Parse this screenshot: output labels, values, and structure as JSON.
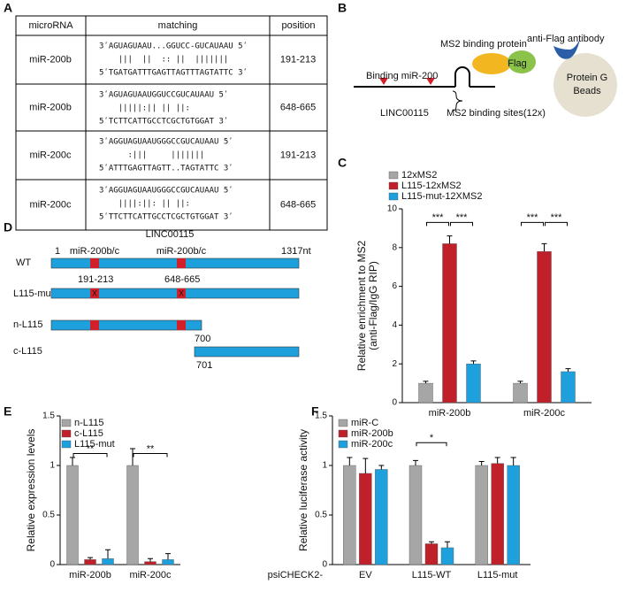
{
  "panel_labels": [
    "A",
    "B",
    "C",
    "D",
    "E",
    "F"
  ],
  "table": {
    "header": [
      "microRNA",
      "matching",
      "position"
    ],
    "rows": [
      [
        "miR-200b",
        [
          "3ʹAGUAGUAAU...GGUCC-GUCAUAAU 5ʹ",
          "    |||  ||  :: ||  |||||||",
          "5ʹTGATGATTTGAGTTAGTTTAGTATTC 3ʹ"
        ],
        "191-213"
      ],
      [
        "miR-200b",
        [
          "3ʹAGUAGUAAUGGUCCGUCAUAAU 5ʹ",
          "    |||||:|| || ||:",
          "5ʹTCTTCATTGCCTCGCTGTGGAT 3ʹ"
        ],
        "648-665"
      ],
      [
        "miR-200c",
        [
          "3ʹAGGUAGUAAUGGGCCGUCAUAAU 5ʹ",
          "      :|||     |||||||",
          "5ʹATTTGAGTTAGTT..TAGTATTC 3ʹ"
        ],
        "191-213"
      ],
      [
        "miR-200c",
        [
          "3ʹAGGUAGUAAUGGGCCGUCAUAAU 5ʹ",
          "    ||||:||: || ||:",
          "5ʹTTCTTCATTGCCTCGCTGTGGAT 3ʹ"
        ],
        "648-665"
      ]
    ]
  },
  "diagram_b": {
    "binding": "Binding miR-200",
    "rna": "LINC00115",
    "ms2_protein": "MS2 binding protein",
    "flag": "Flag",
    "antibody": "anti-Flag antibody",
    "beads": [
      "Protein G",
      "Beads"
    ],
    "sites": "MS2 binding sites(12x)"
  },
  "diagram_d": {
    "title": "LINC00115",
    "start": "1",
    "site1": "miR-200b/c",
    "site2": "miR-200b/c",
    "end": "1317nt",
    "wt": "WT",
    "pos1": "191-213",
    "pos2": "648-665",
    "mut": "L115-mut",
    "x1": "X",
    "x2": "X",
    "n": "n-L115",
    "c": "c-L115",
    "n_end": "700",
    "c_start": "701"
  },
  "chart_data": [
    {
      "type": "bar",
      "ylabel": [
        "Relative enrichment to MS2",
        "(anti-Flag/IgG RIP)"
      ],
      "categories": [
        "miR-200b",
        "miR-200c"
      ],
      "series": [
        {
          "name": "12xMS2",
          "color": "#a6a6a6",
          "values": [
            1,
            1
          ],
          "errors": [
            0.1,
            0.1
          ]
        },
        {
          "name": "L115-12xMS2",
          "color": "#c0202a",
          "values": [
            8.2,
            7.8
          ],
          "errors": [
            0.4,
            0.4
          ]
        },
        {
          "name": "L115-mut-12XMS2",
          "color": "#1ea0dc",
          "values": [
            2,
            1.6
          ],
          "errors": [
            0.15,
            0.15
          ]
        }
      ],
      "ylim": [
        0,
        10
      ],
      "yticks": [
        0,
        2,
        4,
        6,
        8,
        10
      ],
      "annotations": [
        {
          "label": "***",
          "category": 0,
          "series": [
            0,
            1
          ],
          "y": 9.3
        },
        {
          "label": "***",
          "category": 0,
          "series": [
            1,
            2
          ],
          "y": 9.3
        },
        {
          "label": "***",
          "category": 1,
          "series": [
            0,
            1
          ],
          "y": 9.3
        },
        {
          "label": "***",
          "category": 1,
          "series": [
            1,
            2
          ],
          "y": 9.3
        }
      ]
    },
    {
      "type": "bar",
      "ylabel": "Relative expression levels",
      "categories": [
        "miR-200b",
        "miR-200c"
      ],
      "series": [
        {
          "name": "n-L115",
          "color": "#a6a6a6",
          "values": [
            1,
            1
          ],
          "errors": [
            0.08,
            0.17
          ]
        },
        {
          "name": "c-L115",
          "color": "#c0202a",
          "values": [
            0.05,
            0.03
          ],
          "errors": [
            0.02,
            0.03
          ]
        },
        {
          "name": "L115-mut",
          "color": "#1ea0dc",
          "values": [
            0.06,
            0.05
          ],
          "errors": [
            0.09,
            0.06
          ]
        }
      ],
      "ylim": [
        0,
        1.5
      ],
      "yticks": [
        0,
        0.5,
        1,
        1.5
      ],
      "annotations": [
        {
          "label": "**",
          "category": 0,
          "series": [
            0,
            2
          ],
          "y": 1.12
        },
        {
          "label": "**",
          "category": 1,
          "series": [
            0,
            2
          ],
          "y": 1.12
        }
      ]
    },
    {
      "type": "bar",
      "ylabel": "Relative luciferase activity",
      "xprefix": "psiCHECK2-",
      "categories": [
        "EV",
        "L115-WT",
        "L115-mut"
      ],
      "series": [
        {
          "name": "miR-C",
          "color": "#a6a6a6",
          "values": [
            1,
            1,
            1
          ],
          "errors": [
            0.08,
            0.05,
            0.04
          ]
        },
        {
          "name": "miR-200b",
          "color": "#c0202a",
          "values": [
            0.92,
            0.21,
            1.02
          ],
          "errors": [
            0.15,
            0.02,
            0.06
          ]
        },
        {
          "name": "miR-200c",
          "color": "#1ea0dc",
          "values": [
            0.96,
            0.17,
            1.0
          ],
          "errors": [
            0.04,
            0.06,
            0.08
          ]
        }
      ],
      "ylim": [
        0,
        1.5
      ],
      "yticks": [
        0,
        0.5,
        1,
        1.5
      ],
      "annotations": [
        {
          "label": "*",
          "category": 1,
          "series": [
            0,
            2
          ],
          "y": 1.23
        }
      ]
    }
  ]
}
